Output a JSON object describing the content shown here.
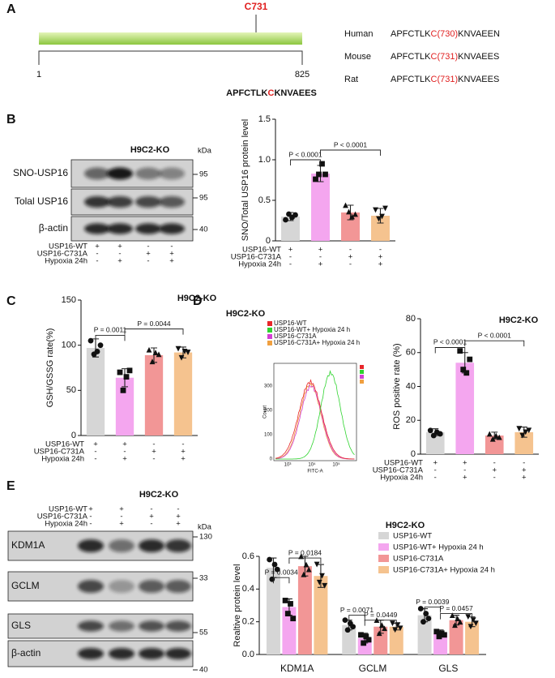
{
  "panel_labels": [
    "A",
    "B",
    "C",
    "D",
    "E"
  ],
  "panel_a": {
    "site": "C731",
    "start": "1",
    "end": "825",
    "motif": [
      "APFCTLK",
      "C",
      "KNVAEES"
    ],
    "species": [
      {
        "name": "Human",
        "seq": [
          "APFCTLK",
          "C(730)",
          "KNVAEEN"
        ]
      },
      {
        "name": "Mouse",
        "seq": [
          "APFCTLK",
          "C(731)",
          "KNVAEES"
        ]
      },
      {
        "name": "Rat",
        "seq": [
          "APFCTLK",
          "C(731)",
          "KNVAEES"
        ]
      }
    ]
  },
  "blot_b": {
    "title": "H9C2-KO",
    "unit": "kDa",
    "rows": [
      {
        "label": "SNO-USP16",
        "marker": "95"
      },
      {
        "label": "Tolal USP16",
        "marker": "95"
      },
      {
        "label": "β-actin",
        "marker": "40"
      }
    ],
    "conditions": [
      {
        "label": "USP16-WT",
        "signs": [
          "+",
          "+",
          "-",
          "-"
        ]
      },
      {
        "label": "USP16-C731A",
        "signs": [
          "-",
          "-",
          "+",
          "+"
        ]
      },
      {
        "label": "Hypoxia 24h",
        "signs": [
          "-",
          "+",
          "-",
          "+"
        ]
      }
    ]
  },
  "flow_d": {
    "title": "H9C2-KO",
    "xlabel": "FITC-A",
    "ylabel": "Count",
    "yticks": [
      "0",
      "100",
      "200",
      "300"
    ],
    "xticks": [
      "10³",
      "10⁴",
      "10⁵"
    ],
    "legend": [
      {
        "name": "USP16-WT",
        "color": "#e8262a"
      },
      {
        "name": "USP16-WT+ Hypoxia 24 h",
        "color": "#2fd42f"
      },
      {
        "name": "USP16-C731A",
        "color": "#d43fd4"
      },
      {
        "name": "USP16-C731A+ Hypoxia 24 h",
        "color": "#f0a040"
      }
    ]
  },
  "blot_e": {
    "title": "H9C2-KO",
    "unit": "kDa",
    "rows": [
      {
        "label": "KDM1A",
        "marker": "130"
      },
      {
        "label": "GCLM",
        "marker": "33"
      },
      {
        "label": "GLS",
        "marker": "55"
      },
      {
        "label": "β-actin",
        "marker": "40"
      }
    ],
    "conditions": [
      {
        "label": "USP16-WT",
        "signs": [
          "+",
          "+",
          "-",
          "-"
        ]
      },
      {
        "label": "USP16-C731A",
        "signs": [
          "-",
          "-",
          "+",
          "+"
        ]
      },
      {
        "label": "Hypoxia 24h",
        "signs": [
          "-",
          "+",
          "-",
          "+"
        ]
      }
    ]
  },
  "chart_data": [
    {
      "type": "bar",
      "ylabel": "SNO/Total USP16 protein level",
      "ylim": [
        0,
        1.5
      ],
      "yticks": [
        0,
        0.5,
        {
          "value": 1,
          "label": "1.0"
        },
        1.5
      ],
      "colors": [
        "#d6d6d6",
        "#f4a6ef",
        "#f29696",
        "#f5c38f"
      ],
      "values": [
        0.3,
        0.83,
        0.35,
        0.31
      ],
      "errors": [
        0.05,
        0.1,
        0.09,
        0.09
      ],
      "points": [
        [
          0.26,
          0.33,
          0.29,
          0.32
        ],
        [
          0.76,
          0.82,
          0.95,
          0.82
        ],
        [
          0.44,
          0.36,
          0.3,
          0.33
        ],
        [
          0.38,
          0.27,
          0.3,
          0.4
        ]
      ],
      "annotations": [
        "P < 0.0001",
        "P < 0.0001"
      ],
      "conditions": [
        {
          "label": "USP16-WT",
          "signs": [
            "+",
            "+",
            "-",
            "-"
          ]
        },
        {
          "label": "USP16-C731A",
          "signs": [
            "-",
            "-",
            "+",
            "+"
          ]
        },
        {
          "label": "Hypoxia 24h",
          "signs": [
            "-",
            "+",
            "-",
            "+"
          ]
        }
      ]
    },
    {
      "type": "bar",
      "title": "H9C2-KO",
      "ylabel": "GSH/GSSG rate(%)",
      "ylim": [
        0,
        150
      ],
      "yticks": [
        0,
        50,
        100,
        150
      ],
      "colors": [
        "#d6d6d6",
        "#f4a6ef",
        "#f29696",
        "#f5c38f"
      ],
      "values": [
        97,
        64,
        89,
        92
      ],
      "errors": [
        10,
        10,
        8,
        6
      ],
      "points": [
        [
          105,
          90,
          93,
          100
        ],
        [
          70,
          50,
          65,
          72
        ],
        [
          95,
          82,
          92,
          90
        ],
        [
          96,
          86,
          93,
          92
        ]
      ],
      "annotations": [
        "P = 0.0011",
        "P = 0.0044"
      ],
      "conditions": [
        {
          "label": "USP16-WT",
          "signs": [
            "+",
            "+",
            "-",
            "-"
          ]
        },
        {
          "label": "USP16-C731A",
          "signs": [
            "-",
            "-",
            "+",
            "+"
          ]
        },
        {
          "label": "Hypoxia 24h",
          "signs": [
            "-",
            "+",
            "-",
            "+"
          ]
        }
      ]
    },
    {
      "type": "bar",
      "title": "H9C2-KO",
      "ylabel": "ROS positive rate (%)",
      "ylim": [
        0,
        80
      ],
      "yticks": [
        0,
        20,
        40,
        60,
        80
      ],
      "colors": [
        "#d6d6d6",
        "#f4a6ef",
        "#f29696",
        "#f5c38f"
      ],
      "values": [
        13,
        54,
        11,
        13
      ],
      "errors": [
        2,
        6,
        2,
        3
      ],
      "points": [
        [
          14,
          11,
          13,
          12
        ],
        [
          61,
          50,
          48,
          56
        ],
        [
          12,
          9,
          11,
          10
        ],
        [
          15,
          11,
          13,
          14
        ]
      ],
      "annotations": [
        "P < 0.0001",
        "P < 0.0001"
      ],
      "conditions": [
        {
          "label": "USP16-WT",
          "signs": [
            "+",
            "+",
            "-",
            "-"
          ]
        },
        {
          "label": "USP16-C731A",
          "signs": [
            "-",
            "-",
            "+",
            "+"
          ]
        },
        {
          "label": "Hypoxia 24h",
          "signs": [
            "-",
            "+",
            "-",
            "+"
          ]
        }
      ]
    },
    {
      "type": "grouped_bar",
      "title": "H9C2-KO",
      "ylabel": "Realtive protein level",
      "ylim": [
        0,
        0.6
      ],
      "yticks": [
        {
          "value": 0,
          "label": "0.0"
        },
        0.2,
        0.4,
        0.6
      ],
      "categories": [
        "KDM1A",
        "GCLM",
        "GLS"
      ],
      "series": [
        {
          "name": "USP16-WT",
          "color": "#d6d6d6",
          "values": [
            0.53,
            0.18,
            0.24
          ],
          "errors": [
            0.06,
            0.03,
            0.04
          ],
          "points": [
            [
              0.58,
              0.46,
              0.55,
              0.52
            ],
            [
              0.21,
              0.15,
              0.19,
              0.17
            ],
            [
              0.28,
              0.2,
              0.25,
              0.22
            ]
          ]
        },
        {
          "name": "USP16-WT+ Hypoxia 24 h",
          "color": "#f4a6ef",
          "values": [
            0.29,
            0.1,
            0.13
          ],
          "errors": [
            0.05,
            0.03,
            0.02
          ],
          "points": [
            [
              0.33,
              0.25,
              0.31,
              0.22
            ],
            [
              0.12,
              0.07,
              0.11,
              0.09
            ],
            [
              0.14,
              0.11,
              0.13,
              0.12
            ]
          ]
        },
        {
          "name": "USP16-C731A",
          "color": "#f29696",
          "values": [
            0.54,
            0.17,
            0.21
          ],
          "errors": [
            0.06,
            0.04,
            0.03
          ],
          "points": [
            [
              0.6,
              0.49,
              0.55,
              0.52
            ],
            [
              0.21,
              0.13,
              0.18,
              0.16
            ],
            [
              0.24,
              0.18,
              0.22,
              0.2
            ]
          ]
        },
        {
          "name": "USP16-C731A+ Hypoxia 24 h",
          "color": "#f5c38f",
          "values": [
            0.48,
            0.17,
            0.2
          ],
          "errors": [
            0.07,
            0.02,
            0.03
          ],
          "points": [
            [
              0.55,
              0.44,
              0.48,
              0.42
            ],
            [
              0.19,
              0.15,
              0.18,
              0.16
            ],
            [
              0.23,
              0.17,
              0.21,
              0.19
            ]
          ]
        }
      ],
      "annotations": [
        "P = 0.0034",
        "P = 0.0184",
        "P = 0.0071",
        "P = 0.0449",
        "P = 0.0039",
        "P = 0.0457"
      ]
    }
  ]
}
